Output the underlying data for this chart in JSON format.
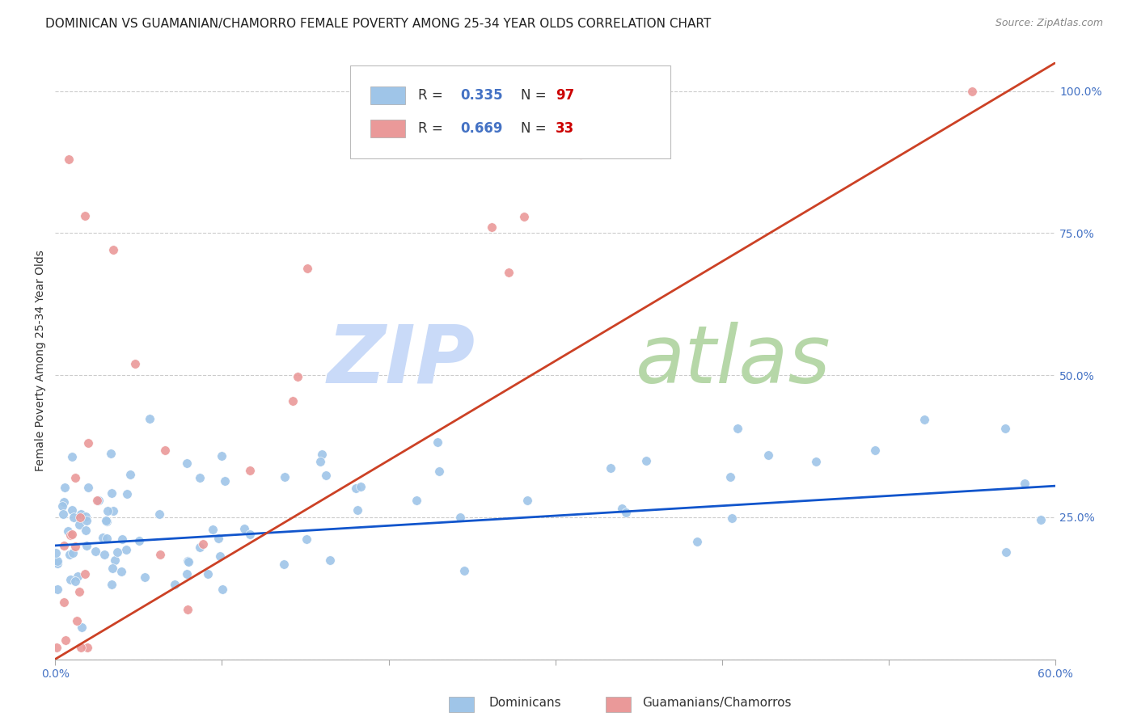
{
  "title": "DOMINICAN VS GUAMANIAN/CHAMORRO FEMALE POVERTY AMONG 25-34 YEAR OLDS CORRELATION CHART",
  "source": "Source: ZipAtlas.com",
  "ylabel": "Female Poverty Among 25-34 Year Olds",
  "right_yticks": [
    "100.0%",
    "75.0%",
    "50.0%",
    "25.0%",
    ""
  ],
  "right_ytick_vals": [
    1.0,
    0.75,
    0.5,
    0.25,
    0.0
  ],
  "xmin": 0.0,
  "xmax": 0.6,
  "ymin": 0.0,
  "ymax": 1.05,
  "dominican_color": "#9fc5e8",
  "guamanian_color": "#ea9999",
  "dominican_line_color": "#1155cc",
  "guamanian_line_color": "#cc4125",
  "legend_box_color_dom": "#9fc5e8",
  "legend_box_color_gua": "#ea9999",
  "R_dom": 0.335,
  "N_dom": 97,
  "R_gua": 0.669,
  "N_gua": 33,
  "watermark_zip": "ZIP",
  "watermark_atlas": "atlas",
  "watermark_color": "#cfe2f3",
  "watermark_color2": "#b6d7a8",
  "grid_color": "#cccccc",
  "bg_color": "#ffffff",
  "right_axis_color": "#4472c4",
  "title_fontsize": 11,
  "axis_label_fontsize": 10,
  "tick_fontsize": 10,
  "dom_line_x0": 0.0,
  "dom_line_x1": 0.6,
  "dom_line_y0": 0.2,
  "dom_line_y1": 0.305,
  "gua_line_x0": 0.0,
  "gua_line_x1": 0.6,
  "gua_line_y0": 0.0,
  "gua_line_y1": 1.05
}
